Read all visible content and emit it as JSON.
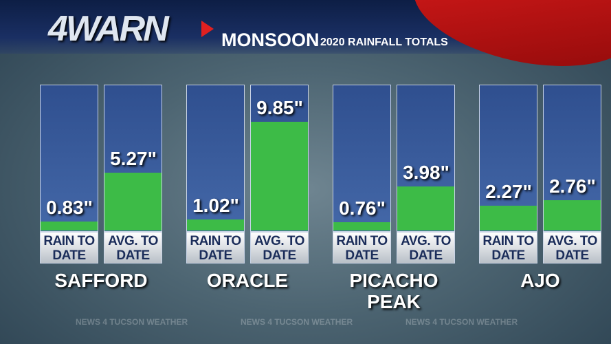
{
  "logo": "4WARN",
  "chart_data": {
    "type": "bar",
    "title": "MONSOON",
    "subtitle": "2020 RAINFALL TOTALS",
    "categories": [
      "SAFFORD",
      "ORACLE",
      "PICACHO PEAK",
      "AJO"
    ],
    "series": [
      {
        "name": "RAIN TO DATE",
        "color": "#3dbb47",
        "values": [
          0.83,
          1.02,
          0.76,
          2.27
        ],
        "value_labels": [
          "0.83\"",
          "1.02\"",
          "0.76\"",
          "2.27\""
        ]
      },
      {
        "name": "AVG. TO DATE",
        "color": "#3dbb47",
        "values": [
          5.27,
          9.85,
          3.98,
          2.76
        ],
        "value_labels": [
          "5.27\"",
          "9.85\"",
          "3.98\"",
          "2.76\""
        ]
      }
    ]
  },
  "footer": "NEWS 4 TUCSON WEATHER"
}
